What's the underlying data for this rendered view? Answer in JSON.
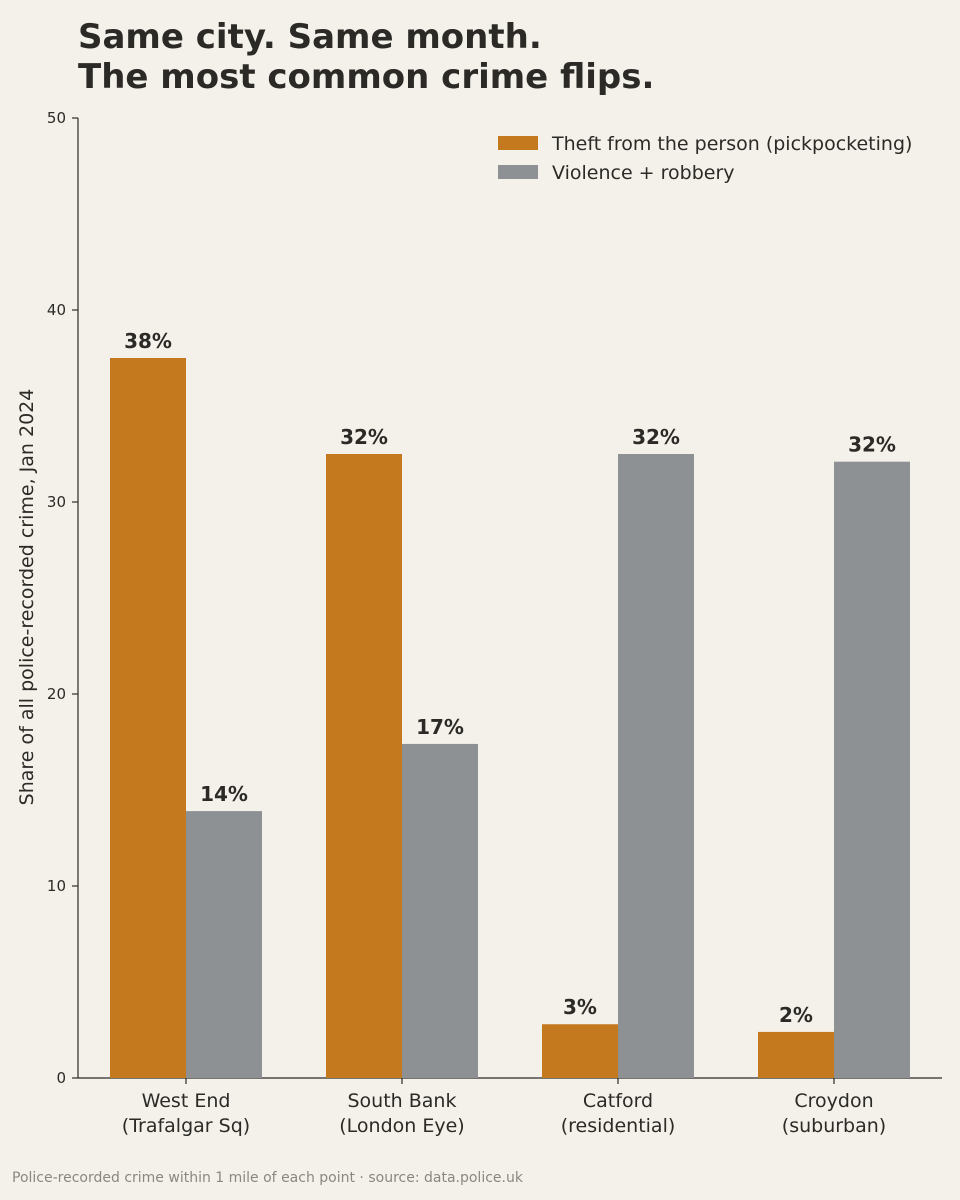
{
  "chart_data": {
    "type": "bar",
    "title_lines": [
      "Same city. Same month.",
      "The most common crime flips."
    ],
    "ylabel": "Share of all police-recorded crime, Jan 2024",
    "xlabel": "",
    "ylim": [
      0,
      50
    ],
    "yticks": [
      0,
      10,
      20,
      30,
      40,
      50
    ],
    "grid": false,
    "legend_position": "top-right",
    "categories": [
      [
        "West End",
        "(Trafalgar Sq)"
      ],
      [
        "South Bank",
        "(London Eye)"
      ],
      [
        "Catford",
        "(residential)"
      ],
      [
        "Croydon",
        "(suburban)"
      ]
    ],
    "series": [
      {
        "name": "Theft from the person (pickpocketing)",
        "color": "#c4791f",
        "values": [
          37.5,
          32.5,
          2.8,
          2.4
        ],
        "labels": [
          "38%",
          "32%",
          "3%",
          "2%"
        ]
      },
      {
        "name": "Violence + robbery",
        "color": "#8d9193",
        "values": [
          13.9,
          17.4,
          32.5,
          32.1
        ],
        "labels": [
          "14%",
          "17%",
          "32%",
          "32%"
        ]
      }
    ],
    "footnote": "Police-recorded crime within 1 mile of each point · source: data.police.uk"
  }
}
